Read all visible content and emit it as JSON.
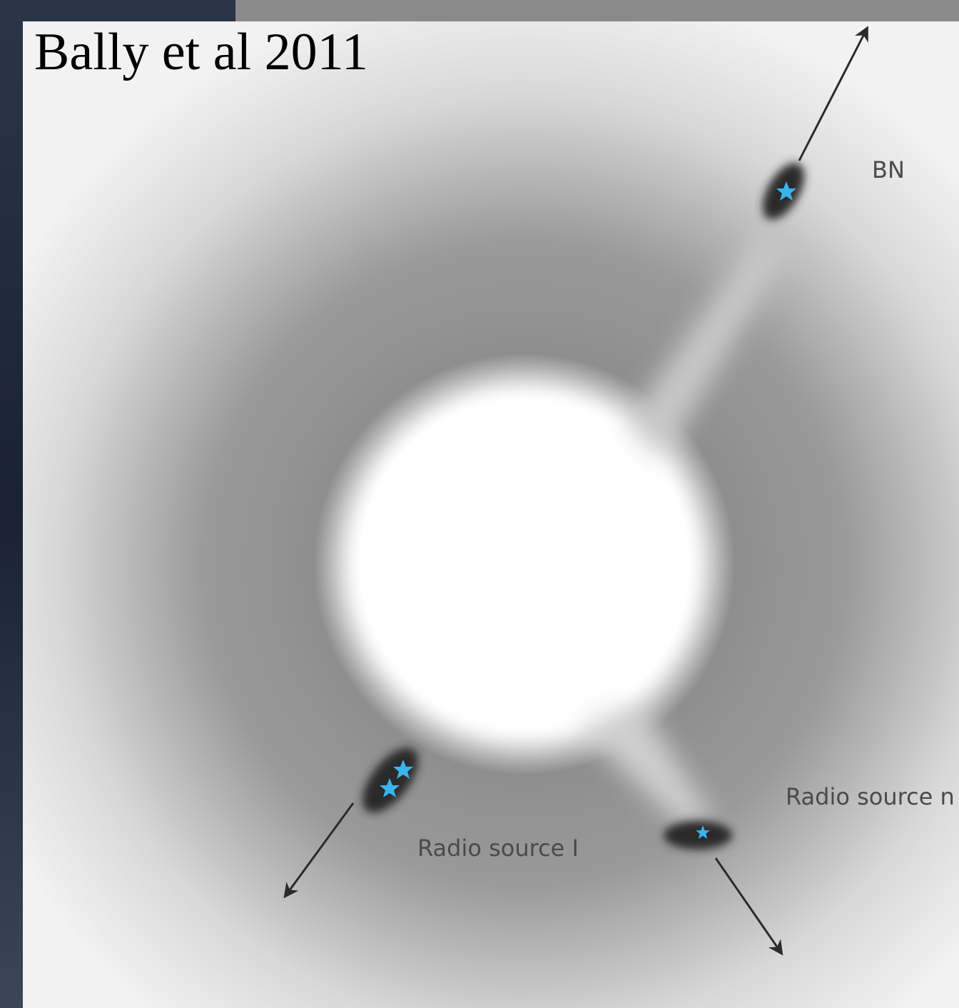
{
  "title": "Bally et al 2011",
  "labels": {
    "bn": "BN",
    "source_n": "Radio source n",
    "source_i": "Radio source I"
  }
}
